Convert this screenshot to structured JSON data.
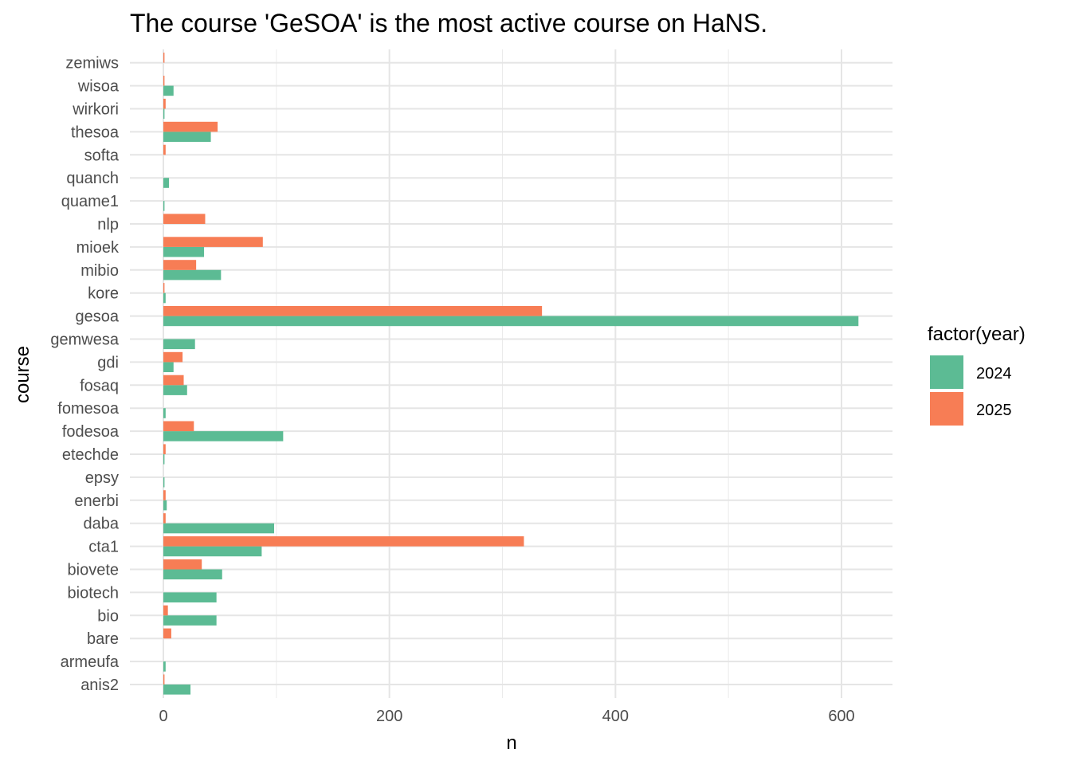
{
  "chart_data": {
    "type": "bar",
    "orientation": "horizontal",
    "title": "The course 'GeSOA' is the most active course on HaNS.",
    "xlabel": "n",
    "ylabel": "course",
    "xlim": [
      -30,
      648
    ],
    "xticks": [
      0,
      200,
      400,
      600
    ],
    "grid": true,
    "legend": {
      "title": "factor(year)",
      "position": "right",
      "entries": [
        {
          "label": "2024",
          "color": "#5cbb94"
        },
        {
          "label": "2025",
          "color": "#f77d55"
        }
      ]
    },
    "categories": [
      "anis2",
      "armeufa",
      "bare",
      "bio",
      "biotech",
      "biovete",
      "cta1",
      "daba",
      "enerbi",
      "epsy",
      "etechde",
      "fodesoa",
      "fomesoa",
      "fosaq",
      "gdi",
      "gemwesa",
      "gesoa",
      "kore",
      "mibio",
      "mioek",
      "nlp",
      "quame1",
      "quanch",
      "softa",
      "thesoa",
      "wirkori",
      "wisoa",
      "zemiws"
    ],
    "series": [
      {
        "name": "2024",
        "color": "#5cbb94",
        "values": [
          24,
          2,
          0,
          47,
          47,
          52,
          87,
          98,
          3,
          1,
          1,
          106,
          2,
          21,
          9,
          28,
          615,
          2,
          51,
          36,
          0,
          1,
          5,
          0,
          42,
          1,
          9,
          0
        ]
      },
      {
        "name": "2025",
        "color": "#f77d55",
        "values": [
          1,
          0,
          7,
          4,
          0,
          34,
          319,
          2,
          2,
          0,
          2,
          27,
          0,
          18,
          17,
          0,
          335,
          1,
          29,
          88,
          37,
          0,
          0,
          2,
          48,
          2,
          1,
          1
        ]
      }
    ]
  }
}
